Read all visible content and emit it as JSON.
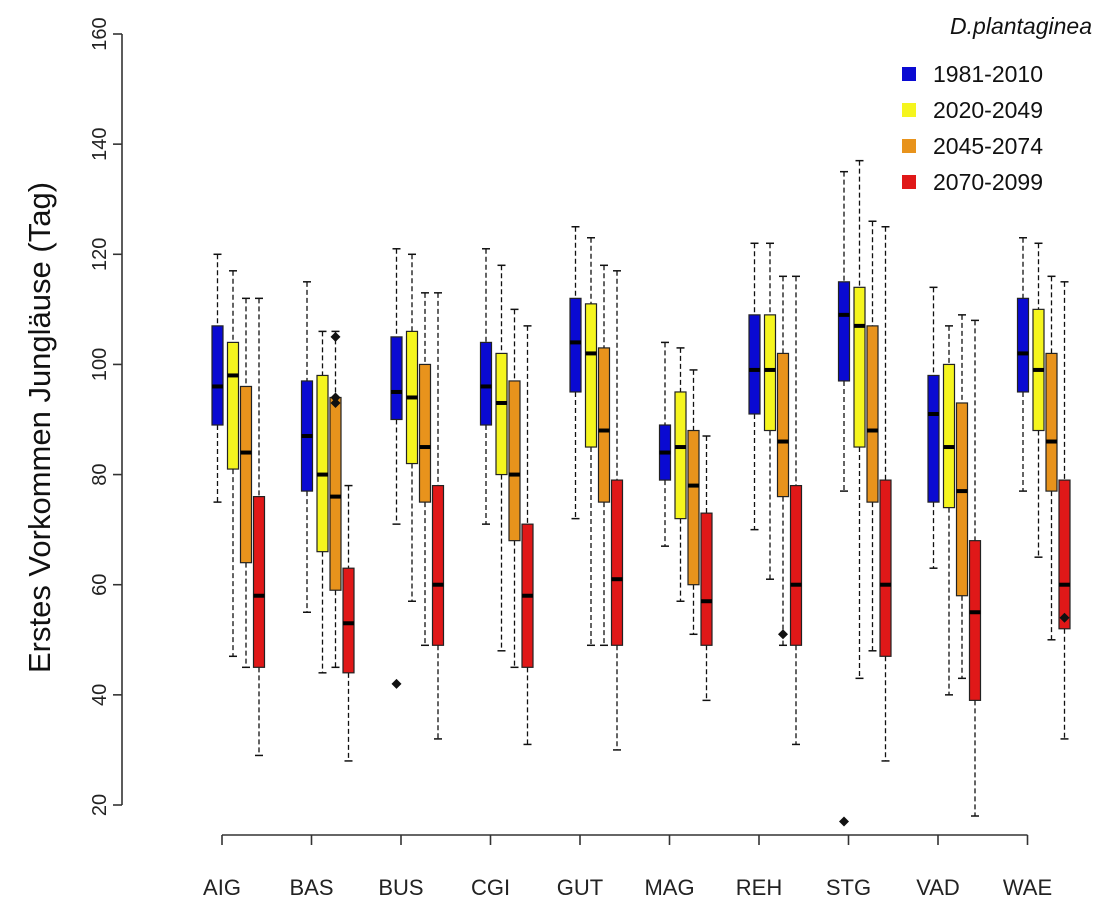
{
  "chart_data": {
    "type": "boxplot",
    "ylabel": "Erstes Vorkommen Jungläuse (Tag)",
    "ylim": [
      20,
      160
    ],
    "yticks": [
      20,
      40,
      60,
      80,
      100,
      120,
      140,
      160
    ],
    "categories": [
      "AIG",
      "BAS",
      "BUS",
      "CGI",
      "GUT",
      "MAG",
      "REH",
      "STG",
      "VAD",
      "WAE"
    ],
    "legend": {
      "title": "D.plantaginea",
      "placement": "top-right"
    },
    "series": [
      {
        "name": "1981-2010",
        "color": "#0a0ad2",
        "boxes": [
          {
            "min": 75,
            "q1": 89,
            "median": 96,
            "q3": 107,
            "max": 120,
            "outliers": []
          },
          {
            "min": 55,
            "q1": 77,
            "median": 87,
            "q3": 97,
            "max": 115,
            "outliers": []
          },
          {
            "min": 71,
            "q1": 90,
            "median": 95,
            "q3": 105,
            "max": 121,
            "outliers": [
              42
            ]
          },
          {
            "min": 71,
            "q1": 89,
            "median": 96,
            "q3": 104,
            "max": 121,
            "outliers": []
          },
          {
            "min": 72,
            "q1": 95,
            "median": 104,
            "q3": 112,
            "max": 125,
            "outliers": []
          },
          {
            "min": 67,
            "q1": 79,
            "median": 84,
            "q3": 89,
            "max": 104,
            "outliers": []
          },
          {
            "min": 70,
            "q1": 91,
            "median": 99,
            "q3": 109,
            "max": 122,
            "outliers": []
          },
          {
            "min": 77,
            "q1": 97,
            "median": 109,
            "q3": 115,
            "max": 135,
            "outliers": [
              17
            ]
          },
          {
            "min": 63,
            "q1": 75,
            "median": 91,
            "q3": 98,
            "max": 114,
            "outliers": []
          },
          {
            "min": 77,
            "q1": 95,
            "median": 102,
            "q3": 112,
            "max": 123,
            "outliers": []
          }
        ]
      },
      {
        "name": "2020-2049",
        "color": "#f5f51e",
        "boxes": [
          {
            "min": 47,
            "q1": 81,
            "median": 98,
            "q3": 104,
            "max": 117,
            "outliers": []
          },
          {
            "min": 44,
            "q1": 66,
            "median": 80,
            "q3": 98,
            "max": 106,
            "outliers": []
          },
          {
            "min": 57,
            "q1": 82,
            "median": 94,
            "q3": 106,
            "max": 120,
            "outliers": []
          },
          {
            "min": 48,
            "q1": 80,
            "median": 93,
            "q3": 102,
            "max": 118,
            "outliers": []
          },
          {
            "min": 49,
            "q1": 85,
            "median": 102,
            "q3": 111,
            "max": 123,
            "outliers": []
          },
          {
            "min": 57,
            "q1": 72,
            "median": 85,
            "q3": 95,
            "max": 103,
            "outliers": []
          },
          {
            "min": 61,
            "q1": 88,
            "median": 99,
            "q3": 109,
            "max": 122,
            "outliers": []
          },
          {
            "min": 43,
            "q1": 85,
            "median": 107,
            "q3": 114,
            "max": 137,
            "outliers": []
          },
          {
            "min": 40,
            "q1": 74,
            "median": 85,
            "q3": 100,
            "max": 107,
            "outliers": []
          },
          {
            "min": 65,
            "q1": 88,
            "median": 99,
            "q3": 110,
            "max": 122,
            "outliers": []
          }
        ]
      },
      {
        "name": "2045-2074",
        "color": "#e8931c",
        "boxes": [
          {
            "min": 45,
            "q1": 64,
            "median": 84,
            "q3": 96,
            "max": 112,
            "outliers": []
          },
          {
            "min": 45,
            "q1": 59,
            "median": 76,
            "q3": 94,
            "max": 106,
            "outliers": [
              93,
              94,
              105
            ]
          },
          {
            "min": 49,
            "q1": 75,
            "median": 85,
            "q3": 100,
            "max": 113,
            "outliers": []
          },
          {
            "min": 45,
            "q1": 68,
            "median": 80,
            "q3": 97,
            "max": 110,
            "outliers": []
          },
          {
            "min": 49,
            "q1": 75,
            "median": 88,
            "q3": 103,
            "max": 118,
            "outliers": []
          },
          {
            "min": 51,
            "q1": 60,
            "median": 78,
            "q3": 88,
            "max": 99,
            "outliers": []
          },
          {
            "min": 49,
            "q1": 76,
            "median": 86,
            "q3": 102,
            "max": 116,
            "outliers": [
              51
            ]
          },
          {
            "min": 48,
            "q1": 75,
            "median": 88,
            "q3": 107,
            "max": 126,
            "outliers": []
          },
          {
            "min": 43,
            "q1": 58,
            "median": 77,
            "q3": 93,
            "max": 109,
            "outliers": []
          },
          {
            "min": 50,
            "q1": 77,
            "median": 86,
            "q3": 102,
            "max": 116,
            "outliers": []
          }
        ]
      },
      {
        "name": "2070-2099",
        "color": "#e01818",
        "boxes": [
          {
            "min": 29,
            "q1": 45,
            "median": 58,
            "q3": 76,
            "max": 112,
            "outliers": []
          },
          {
            "min": 28,
            "q1": 44,
            "median": 53,
            "q3": 63,
            "max": 78,
            "outliers": []
          },
          {
            "min": 32,
            "q1": 49,
            "median": 60,
            "q3": 78,
            "max": 113,
            "outliers": []
          },
          {
            "min": 31,
            "q1": 45,
            "median": 58,
            "q3": 71,
            "max": 107,
            "outliers": []
          },
          {
            "min": 30,
            "q1": 49,
            "median": 61,
            "q3": 79,
            "max": 117,
            "outliers": []
          },
          {
            "min": 39,
            "q1": 49,
            "median": 57,
            "q3": 73,
            "max": 87,
            "outliers": []
          },
          {
            "min": 31,
            "q1": 49,
            "median": 60,
            "q3": 78,
            "max": 116,
            "outliers": []
          },
          {
            "min": 28,
            "q1": 47,
            "median": 60,
            "q3": 79,
            "max": 125,
            "outliers": []
          },
          {
            "min": 18,
            "q1": 39,
            "median": 55,
            "q3": 68,
            "max": 108,
            "outliers": []
          },
          {
            "min": 32,
            "q1": 52,
            "median": 60,
            "q3": 79,
            "max": 115,
            "outliers": [
              54
            ]
          }
        ]
      }
    ]
  }
}
